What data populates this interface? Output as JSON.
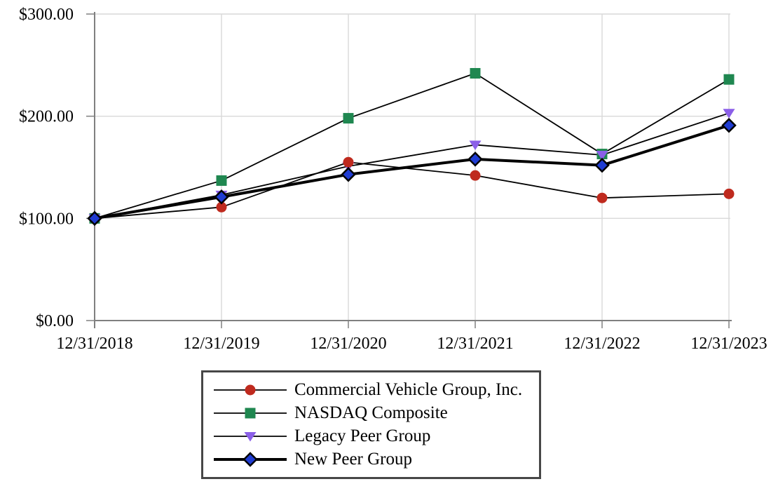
{
  "chart_data": {
    "type": "line",
    "title": "",
    "xlabel": "",
    "ylabel": "",
    "categories": [
      "12/31/2018",
      "12/31/2019",
      "12/31/2020",
      "12/31/2021",
      "12/31/2022",
      "12/31/2023"
    ],
    "series": [
      {
        "name": "Commercial Vehicle Group, Inc.",
        "marker": "circle",
        "marker_color": "#BF2A1E",
        "line_color": "#000000",
        "line_width": 1.8,
        "values": [
          100,
          111,
          155,
          142,
          120,
          124
        ]
      },
      {
        "name": "NASDAQ Composite",
        "marker": "square",
        "marker_color": "#1F8750",
        "line_color": "#000000",
        "line_width": 1.8,
        "values": [
          100,
          137,
          198,
          242,
          163,
          236
        ]
      },
      {
        "name": "Legacy Peer Group",
        "marker": "triangle-down",
        "marker_color": "#8B5FE8",
        "line_color": "#000000",
        "line_width": 1.8,
        "values": [
          100,
          123,
          151,
          172,
          162,
          203
        ]
      },
      {
        "name": "New Peer Group",
        "marker": "diamond",
        "marker_color": "#1F3CD2",
        "line_color": "#000000",
        "line_width": 4.0,
        "values": [
          100,
          121,
          143,
          158,
          152,
          191
        ]
      }
    ],
    "y_ticks": [
      {
        "value": 0,
        "label": "$0.00"
      },
      {
        "value": 100,
        "label": "$100.00"
      },
      {
        "value": 200,
        "label": "$200.00"
      },
      {
        "value": 300,
        "label": "$300.00"
      }
    ],
    "ylim": [
      0,
      300
    ],
    "grid": true,
    "legend_position": "bottom-center",
    "colors": {
      "axis": "#808080",
      "grid": "#D9D9D9",
      "text": "#000000",
      "legend_border": "#474747",
      "background": "#FFFFFF"
    }
  }
}
